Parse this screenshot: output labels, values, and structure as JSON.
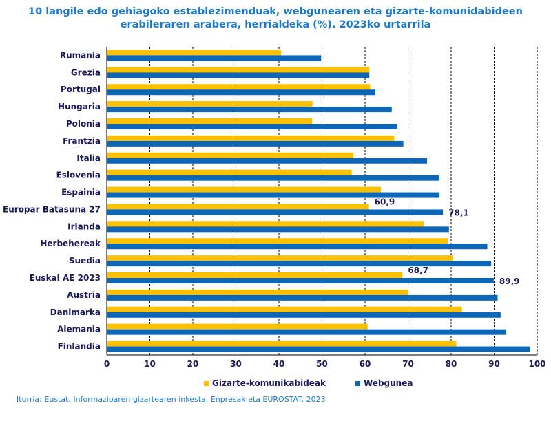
{
  "colors": {
    "social": "#ffc000",
    "web": "#0e67b6",
    "title": "#1f79c8",
    "label": "#1a1a5a"
  },
  "chart_data": {
    "type": "bar",
    "orientation": "horizontal",
    "title": "10 langile edo gehiagoko establezimenduak, webgunearen eta gizarte-komunidabideen erabileraren arabera, herrialdeka (%). 2023ko urtarrila",
    "title_lines": [
      "10 langile edo gehiagoko establezimenduak, webgunearen eta gizarte-komunidabideen",
      "erabileraren arabera, herrialdeka (%). 2023ko urtarrila"
    ],
    "categories": [
      "Rumania",
      "Grezia",
      "Portugal",
      "Hungaria",
      "Polonia",
      "Frantzia",
      "Italia",
      "Eslovenia",
      "Espainia",
      "Europar Batasuna 27",
      "Irlanda",
      "Herbehereak",
      "Suedia",
      "Euskal AE 2023",
      "Austria",
      "Danimarka",
      "Alemania",
      "Finlandia"
    ],
    "series": [
      {
        "name": "Gizarte-komunikabideak",
        "values": [
          40.5,
          61.0,
          61.2,
          47.8,
          47.7,
          66.8,
          57.3,
          56.9,
          63.7,
          60.9,
          73.6,
          79.2,
          80.4,
          68.7,
          70.0,
          82.5,
          60.6,
          81.2
        ]
      },
      {
        "name": "Webgunea",
        "values": [
          49.8,
          61.0,
          62.4,
          66.2,
          67.4,
          68.9,
          74.4,
          77.2,
          77.3,
          78.1,
          79.5,
          88.4,
          89.3,
          89.9,
          90.8,
          91.5,
          92.8,
          98.4
        ]
      }
    ],
    "data_labels": [
      {
        "category": "Europar Batasuna 27",
        "series": "Gizarte-komunikabideak",
        "text": "60,9"
      },
      {
        "category": "Europar Batasuna 27",
        "series": "Webgunea",
        "text": "78,1"
      },
      {
        "category": "Euskal AE 2023",
        "series": "Gizarte-komunikabideak",
        "text": "68,7"
      },
      {
        "category": "Euskal AE 2023",
        "series": "Webgunea",
        "text": "89,9"
      }
    ],
    "xlim": [
      0,
      100
    ],
    "xticks": [
      0,
      10,
      20,
      30,
      40,
      50,
      60,
      70,
      80,
      90,
      100
    ],
    "grid": "vertical dashed",
    "legend_position": "bottom",
    "xlabel": "",
    "ylabel": ""
  },
  "legend": [
    {
      "label": "Gizarte-komunikabideak"
    },
    {
      "label": "Webgunea"
    }
  ],
  "source": "Iturria: Eustat. Informazioaren gizartearen inkesta. Enpresak eta EUROSTAT. 2023"
}
